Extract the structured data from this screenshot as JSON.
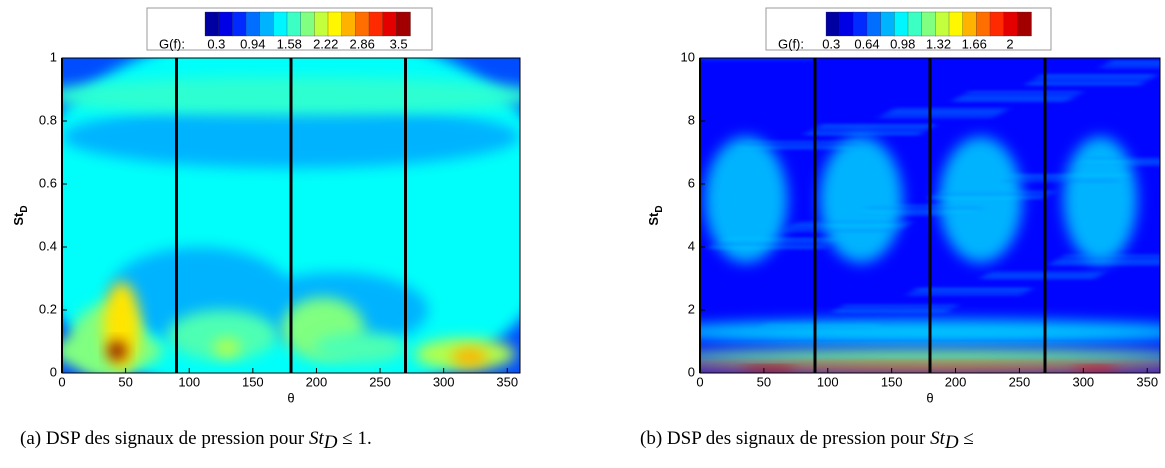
{
  "chart_data": [
    {
      "type": "heatmap",
      "xlabel": "θ",
      "ylabel": "St",
      "ylabel_sub": "D",
      "xlim": [
        0,
        360
      ],
      "xticks": [
        0,
        50,
        100,
        150,
        200,
        250,
        300,
        350
      ],
      "ylim": [
        0,
        1
      ],
      "yticks": [
        0,
        0.2,
        0.4,
        0.6,
        0.8,
        1
      ],
      "vlines": [
        90,
        180,
        270
      ],
      "colorbar_label": "G(f):",
      "clim": [
        0.1,
        3.7
      ],
      "colorbar_ticks": [
        0.3,
        0.94,
        1.58,
        2.22,
        2.86,
        3.5
      ],
      "caption": "(a) DSP des signaux de pression pour ",
      "caption_math": "St",
      "caption_sub": "D",
      "caption_rest": " ≤ 1."
    },
    {
      "type": "heatmap",
      "xlabel": "θ",
      "ylabel": "St",
      "ylabel_sub": "D",
      "xlim": [
        0,
        360
      ],
      "xticks": [
        0,
        50,
        100,
        150,
        200,
        250,
        300,
        350
      ],
      "ylim": [
        0,
        10
      ],
      "yticks": [
        0,
        2,
        4,
        6,
        8,
        10
      ],
      "vlines": [
        90,
        180,
        270
      ],
      "colorbar_label": "G(f):",
      "clim": [
        0.25,
        2.2
      ],
      "colorbar_ticks": [
        0.3,
        0.64,
        0.98,
        1.32,
        1.66,
        2
      ],
      "caption": "(b) DSP des signaux de pression pour ",
      "caption_math": "St",
      "caption_sub": "D",
      "caption_rest": " ≤"
    }
  ]
}
